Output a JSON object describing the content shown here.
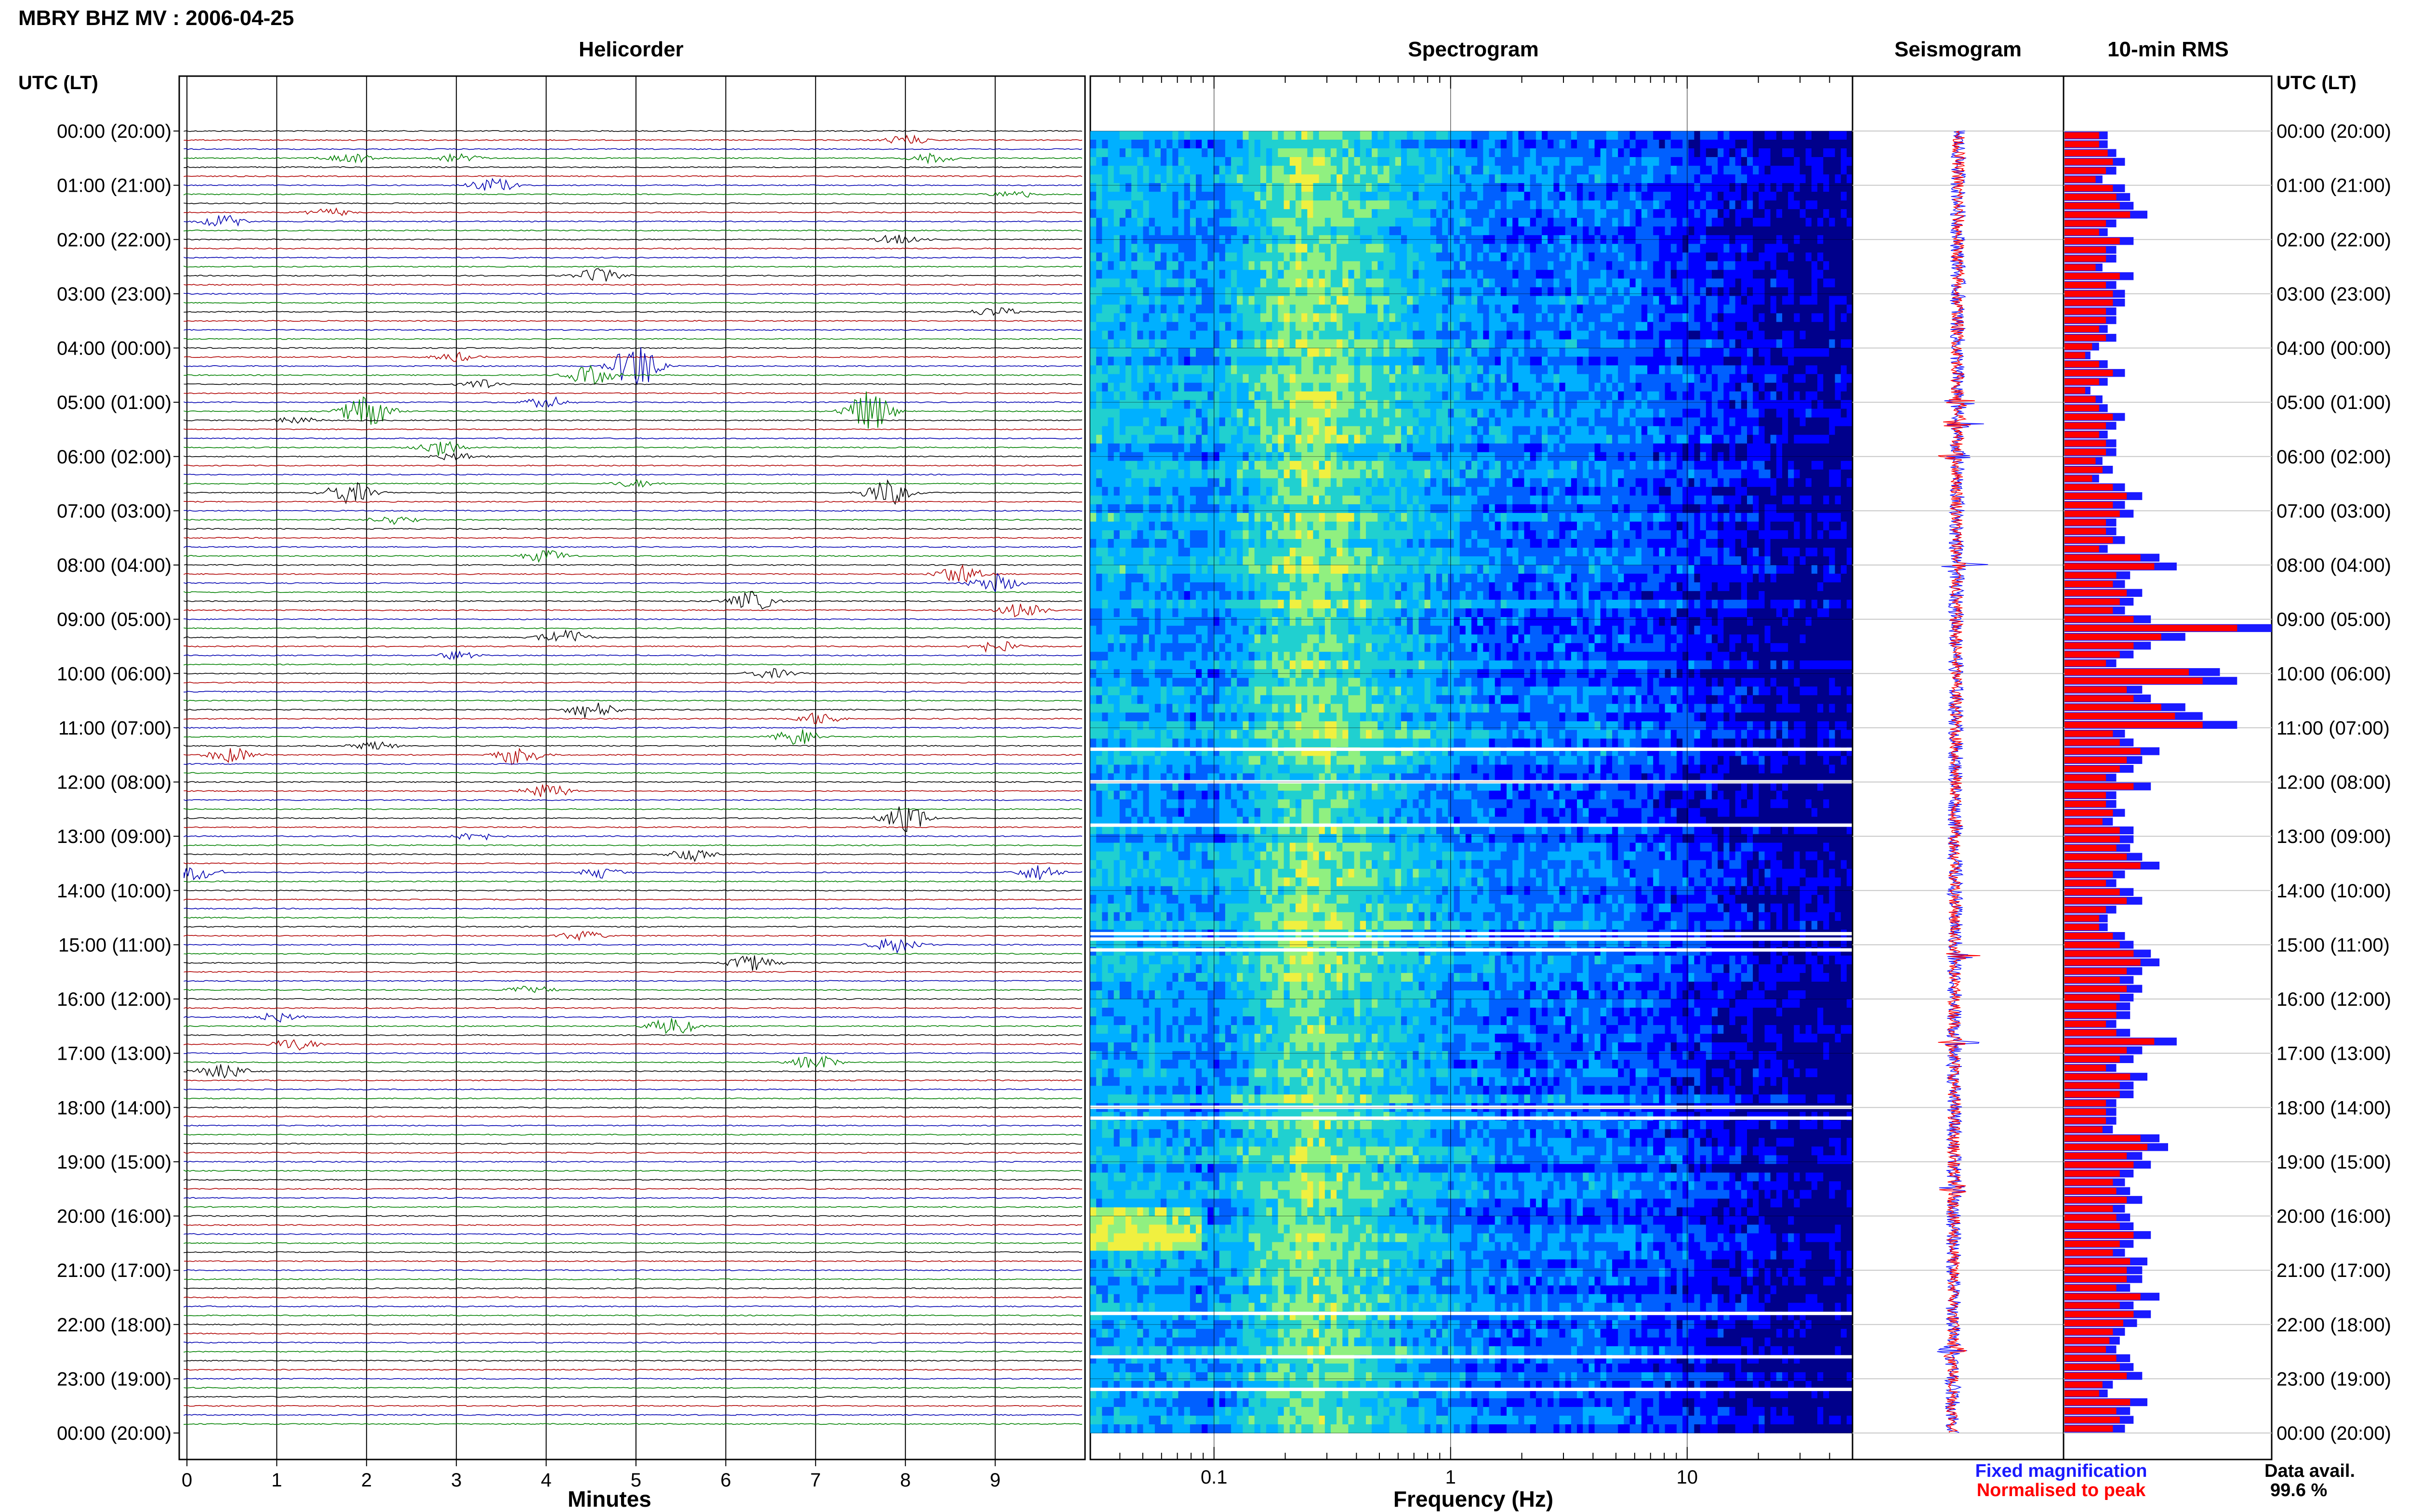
{
  "title": "MBRY BHZ MV : 2006-04-25",
  "panels": {
    "helicorder": "Helicorder",
    "spectrogram": "Spectrogram",
    "seismogram": "Seismogram",
    "rms": "10-min RMS"
  },
  "axis": {
    "left_header": "UTC (LT)",
    "right_header": "UTC (LT)",
    "minutes_label": "Minutes",
    "frequency_label": "Frequency (Hz)"
  },
  "legend": {
    "fixed": "Fixed magnification",
    "normalised": "Normalised to peak",
    "fixed_color": "#1a1aff",
    "normalised_color": "#ff0000"
  },
  "availability": {
    "label": "Data avail.",
    "value": "99.6 %"
  },
  "time_labels": [
    "00:00 (20:00)",
    "01:00 (21:00)",
    "02:00 (22:00)",
    "03:00 (23:00)",
    "04:00 (00:00)",
    "05:00 (01:00)",
    "06:00 (02:00)",
    "07:00 (03:00)",
    "08:00 (04:00)",
    "09:00 (05:00)",
    "10:00 (06:00)",
    "11:00 (07:00)",
    "12:00 (08:00)",
    "13:00 (09:00)",
    "14:00 (10:00)",
    "15:00 (11:00)",
    "16:00 (12:00)",
    "17:00 (13:00)",
    "18:00 (14:00)",
    "19:00 (15:00)",
    "20:00 (16:00)",
    "21:00 (17:00)",
    "22:00 (18:00)",
    "23:00 (19:00)",
    "00:00 (20:00)"
  ],
  "minute_ticks": [
    "0",
    "1",
    "2",
    "3",
    "4",
    "5",
    "6",
    "7",
    "8",
    "9"
  ],
  "frequency_ticks": [
    {
      "value": 0.1,
      "label": "0.1"
    },
    {
      "value": 1,
      "label": "1"
    },
    {
      "value": 10,
      "label": "10"
    }
  ],
  "trace_colors": [
    "#000000",
    "#b00000",
    "#0000b0",
    "#008000"
  ],
  "chart_data": [
    {
      "type": "helicorder",
      "title": "Helicorder",
      "xlabel": "Minutes",
      "xlim": [
        0,
        10
      ],
      "rows_per_hour": 6,
      "row_minutes": 10,
      "hours": 24,
      "events": [
        {
          "row": 1,
          "minute": 8.0,
          "amp": 0.6
        },
        {
          "row": 3,
          "minute": 1.8,
          "amp": 0.7
        },
        {
          "row": 3,
          "minute": 3.0,
          "amp": 0.6
        },
        {
          "row": 3,
          "minute": 8.3,
          "amp": 0.6
        },
        {
          "row": 6,
          "minute": 3.4,
          "amp": 0.9
        },
        {
          "row": 7,
          "minute": 9.2,
          "amp": 0.5
        },
        {
          "row": 9,
          "minute": 1.6,
          "amp": 0.5
        },
        {
          "row": 10,
          "minute": 0.4,
          "amp": 0.8
        },
        {
          "row": 12,
          "minute": 7.9,
          "amp": 0.6
        },
        {
          "row": 16,
          "minute": 4.6,
          "amp": 1.0
        },
        {
          "row": 20,
          "minute": 9.0,
          "amp": 0.6
        },
        {
          "row": 25,
          "minute": 3.0,
          "amp": 0.6
        },
        {
          "row": 26,
          "minute": 5.0,
          "amp": 3.0
        },
        {
          "row": 27,
          "minute": 4.5,
          "amp": 1.2
        },
        {
          "row": 28,
          "minute": 3.3,
          "amp": 0.6
        },
        {
          "row": 30,
          "minute": 4.0,
          "amp": 0.7
        },
        {
          "row": 31,
          "minute": 2.0,
          "amp": 2.5
        },
        {
          "row": 31,
          "minute": 7.6,
          "amp": 2.6
        },
        {
          "row": 32,
          "minute": 1.2,
          "amp": 0.5
        },
        {
          "row": 35,
          "minute": 2.8,
          "amp": 1.0
        },
        {
          "row": 36,
          "minute": 3.0,
          "amp": 0.5
        },
        {
          "row": 39,
          "minute": 5.0,
          "amp": 0.5
        },
        {
          "row": 40,
          "minute": 1.8,
          "amp": 1.4
        },
        {
          "row": 40,
          "minute": 7.8,
          "amp": 1.6
        },
        {
          "row": 43,
          "minute": 2.3,
          "amp": 0.6
        },
        {
          "row": 47,
          "minute": 4.0,
          "amp": 0.8
        },
        {
          "row": 49,
          "minute": 8.6,
          "amp": 1.2
        },
        {
          "row": 50,
          "minute": 9.0,
          "amp": 1.2
        },
        {
          "row": 52,
          "minute": 6.3,
          "amp": 1.2
        },
        {
          "row": 53,
          "minute": 9.3,
          "amp": 0.9
        },
        {
          "row": 56,
          "minute": 4.2,
          "amp": 1.0
        },
        {
          "row": 57,
          "minute": 9.0,
          "amp": 0.8
        },
        {
          "row": 58,
          "minute": 3.0,
          "amp": 0.5
        },
        {
          "row": 60,
          "minute": 6.5,
          "amp": 0.6
        },
        {
          "row": 64,
          "minute": 4.5,
          "amp": 1.2
        },
        {
          "row": 65,
          "minute": 7.0,
          "amp": 0.8
        },
        {
          "row": 67,
          "minute": 6.8,
          "amp": 1.0
        },
        {
          "row": 68,
          "minute": 2.1,
          "amp": 0.6
        },
        {
          "row": 69,
          "minute": 0.5,
          "amp": 1.0
        },
        {
          "row": 69,
          "minute": 3.7,
          "amp": 1.3
        },
        {
          "row": 73,
          "minute": 4.0,
          "amp": 0.9
        },
        {
          "row": 76,
          "minute": 8.0,
          "amp": 1.6
        },
        {
          "row": 78,
          "minute": 3.2,
          "amp": 0.6
        },
        {
          "row": 80,
          "minute": 5.6,
          "amp": 0.9
        },
        {
          "row": 82,
          "minute": 0.1,
          "amp": 1.0
        },
        {
          "row": 82,
          "minute": 9.5,
          "amp": 1.0
        },
        {
          "row": 82,
          "minute": 4.6,
          "amp": 0.7
        },
        {
          "row": 89,
          "minute": 4.4,
          "amp": 0.6
        },
        {
          "row": 90,
          "minute": 7.9,
          "amp": 1.1
        },
        {
          "row": 92,
          "minute": 6.3,
          "amp": 1.1
        },
        {
          "row": 95,
          "minute": 3.8,
          "amp": 0.6
        },
        {
          "row": 98,
          "minute": 1.0,
          "amp": 0.6
        },
        {
          "row": 99,
          "minute": 5.4,
          "amp": 1.2
        },
        {
          "row": 101,
          "minute": 1.2,
          "amp": 0.8
        },
        {
          "row": 103,
          "minute": 7.0,
          "amp": 1.0
        },
        {
          "row": 104,
          "minute": 0.4,
          "amp": 1.0
        }
      ]
    },
    {
      "type": "heatmap",
      "title": "Spectrogram",
      "xlabel": "Frequency (Hz)",
      "xscale": "log",
      "xlim": [
        0.03,
        50
      ],
      "colormap": [
        "#00008b",
        "#0000ff",
        "#0060ff",
        "#00b0ff",
        "#20d0d0",
        "#90f080",
        "#f0f040"
      ],
      "intensity_profile": [
        {
          "freq": 0.03,
          "level": 3.2
        },
        {
          "freq": 0.06,
          "level": 3.0
        },
        {
          "freq": 0.1,
          "level": 2.6
        },
        {
          "freq": 0.15,
          "level": 3.8
        },
        {
          "freq": 0.25,
          "level": 5.0
        },
        {
          "freq": 0.5,
          "level": 3.9
        },
        {
          "freq": 1,
          "level": 2.8
        },
        {
          "freq": 2,
          "level": 2.1
        },
        {
          "freq": 4,
          "level": 2.3
        },
        {
          "freq": 8,
          "level": 1.6
        },
        {
          "freq": 15,
          "level": 0.9
        },
        {
          "freq": 25,
          "level": 0.3
        },
        {
          "freq": 50,
          "level": 0
        }
      ],
      "gaps_hours": [
        11.4,
        12.0,
        12.8,
        14.8,
        14.9,
        15.1,
        18.0,
        18.2,
        21.8,
        22.6,
        23.2
      ]
    },
    {
      "type": "line",
      "title": "Seismogram",
      "orientation": "vertical",
      "series": [
        {
          "name": "Fixed magnification",
          "color": "#1a1aff"
        },
        {
          "name": "Normalised to peak",
          "color": "#ff0000"
        }
      ],
      "spikes_hours": [
        5.0,
        5.4,
        6.0,
        8.0,
        15.2,
        16.8,
        19.5,
        22.5
      ]
    },
    {
      "type": "bar",
      "title": "10-min RMS",
      "orientation": "horizontal",
      "bins_minutes": 10,
      "series": [
        {
          "name": "Fixed magnification",
          "color": "#1a1aff",
          "values": [
            25,
            25,
            30,
            35,
            30,
            22,
            35,
            38,
            40,
            48,
            30,
            25,
            40,
            30,
            30,
            22,
            40,
            30,
            35,
            35,
            30,
            30,
            25,
            30,
            20,
            15,
            25,
            35,
            25,
            15,
            22,
            25,
            35,
            30,
            25,
            30,
            30,
            22,
            28,
            20,
            35,
            45,
            35,
            40,
            30,
            30,
            35,
            25,
            55,
            65,
            38,
            35,
            45,
            40,
            35,
            50,
            120,
            70,
            50,
            40,
            30,
            90,
            100,
            45,
            50,
            70,
            80,
            100,
            35,
            40,
            55,
            45,
            40,
            30,
            50,
            30,
            30,
            35,
            28,
            40,
            40,
            38,
            45,
            55,
            35,
            30,
            40,
            45,
            30,
            25,
            25,
            35,
            40,
            50,
            55,
            45,
            40,
            45,
            40,
            38,
            38,
            30,
            38,
            65,
            45,
            40,
            30,
            48,
            40,
            40,
            30,
            30,
            30,
            28,
            55,
            60,
            45,
            50,
            40,
            35,
            38,
            45,
            35,
            38,
            40,
            50,
            40,
            35,
            48,
            45,
            45,
            38,
            55,
            40,
            50,
            42,
            35,
            32,
            30,
            38,
            40,
            45,
            28,
            25,
            48,
            38,
            40,
            35
          ]
        },
        {
          "name": "Normalised to peak",
          "color": "#ff0000",
          "values": [
            20,
            20,
            25,
            28,
            24,
            18,
            28,
            30,
            32,
            38,
            24,
            20,
            32,
            24,
            24,
            18,
            32,
            24,
            28,
            28,
            24,
            24,
            20,
            24,
            16,
            12,
            20,
            28,
            20,
            12,
            18,
            20,
            28,
            24,
            20,
            24,
            24,
            18,
            22,
            16,
            28,
            36,
            28,
            32,
            24,
            24,
            28,
            20,
            44,
            52,
            30,
            28,
            36,
            32,
            28,
            40,
            100,
            56,
            40,
            32,
            24,
            72,
            80,
            36,
            40,
            56,
            64,
            80,
            28,
            32,
            44,
            36,
            32,
            24,
            40,
            24,
            24,
            28,
            22,
            32,
            32,
            30,
            36,
            44,
            28,
            24,
            32,
            36,
            24,
            20,
            20,
            28,
            32,
            40,
            44,
            36,
            32,
            36,
            32,
            30,
            30,
            24,
            30,
            52,
            36,
            32,
            24,
            38,
            32,
            32,
            24,
            24,
            24,
            22,
            44,
            48,
            36,
            40,
            32,
            28,
            30,
            36,
            28,
            30,
            32,
            40,
            32,
            28,
            38,
            36,
            36,
            30,
            44,
            32,
            40,
            34,
            28,
            26,
            24,
            30,
            32,
            36,
            22,
            20,
            38,
            30,
            32,
            28
          ]
        }
      ]
    }
  ]
}
